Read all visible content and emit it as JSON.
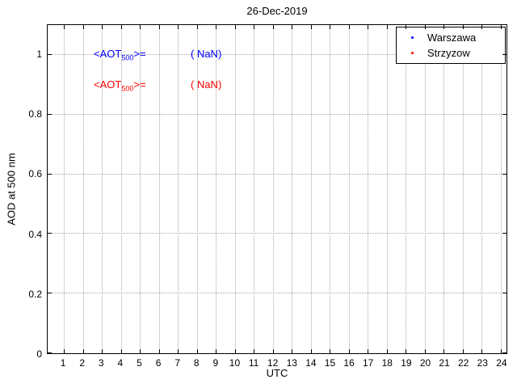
{
  "title": "26-Dec-2019",
  "axes": {
    "xlabel": "UTC",
    "ylabel": "AOD at 500 nm"
  },
  "legend": {
    "items": [
      {
        "label": "Warszawa",
        "color": "#0000ff",
        "marker": "point"
      },
      {
        "label": "Strzyzow",
        "color": "#ff0000",
        "marker": "point"
      }
    ]
  },
  "annotations": [
    {
      "series": "Warszawa",
      "prefix": "<AOT",
      "sub": "500",
      "suffix": ">=",
      "value": "( NaN)",
      "color": "#0000ff"
    },
    {
      "series": "Strzyzow",
      "prefix": "<AOT",
      "sub": "500",
      "suffix": ">=",
      "value": "( NaN)",
      "color": "#ff0000"
    }
  ],
  "chart_data": {
    "type": "scatter",
    "title": "26-Dec-2019",
    "xlabel": "UTC",
    "ylabel": "AOD at 500 nm",
    "xlim": [
      0.15,
      24.3
    ],
    "ylim": [
      0,
      1.1
    ],
    "xticks": [
      1,
      2,
      3,
      4,
      5,
      6,
      7,
      8,
      9,
      10,
      11,
      12,
      13,
      14,
      15,
      16,
      17,
      18,
      19,
      20,
      21,
      22,
      23,
      24
    ],
    "yticks": [
      0,
      0.2,
      0.4,
      0.6,
      0.8,
      1
    ],
    "grid": true,
    "legend_position": "top-right",
    "series": [
      {
        "name": "Warszawa",
        "color": "#0000ff",
        "marker": "point",
        "x": [],
        "y": [],
        "mean_aot500": "NaN"
      },
      {
        "name": "Strzyzow",
        "color": "#ff0000",
        "marker": "point",
        "x": [],
        "y": [],
        "mean_aot500": "NaN"
      }
    ]
  }
}
